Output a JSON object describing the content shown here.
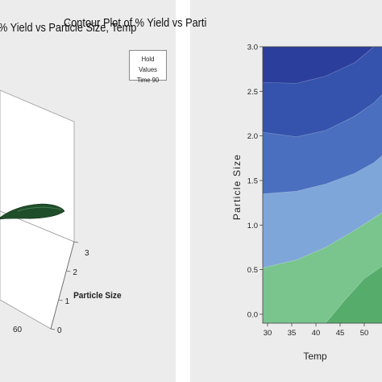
{
  "chart_data": [
    {
      "type": "surface",
      "title": "% Yield vs Particle Size, Temp",
      "hold_values": {
        "header": "Hold Values",
        "line": "Time  90"
      },
      "axes": {
        "particle_size": {
          "label": "Particle Size",
          "ticks": [
            "0",
            "1",
            "2",
            "3"
          ]
        },
        "temp": {
          "label": "",
          "ticks": [
            "60"
          ]
        }
      },
      "surface_color": "#1f4f2a"
    },
    {
      "type": "contour",
      "title": "Contour Plot of % Yield vs Parti",
      "xlabel": "Temp",
      "ylabel": "Particle Size",
      "xlim": [
        29,
        58
      ],
      "ylim": [
        -0.1,
        3.0
      ],
      "x_ticks": [
        "30",
        "35",
        "40",
        "45",
        "50"
      ],
      "y_ticks": [
        "0.0",
        "0.5",
        "1.0",
        "1.5",
        "2.0",
        "2.5",
        "3.0"
      ],
      "levels": [
        {
          "color": "#2c3e9c",
          "boundary": [
            [
              29,
              2.6
            ],
            [
              36,
              2.59
            ],
            [
              42,
              2.67
            ],
            [
              48,
              2.82
            ],
            [
              52,
              3.0
            ]
          ]
        },
        {
          "color": "#3553ac",
          "boundary": [
            [
              29,
              2.04
            ],
            [
              36,
              1.99
            ],
            [
              42,
              2.06
            ],
            [
              48,
              2.22
            ],
            [
              52,
              2.37
            ],
            [
              58,
              2.7
            ]
          ]
        },
        {
          "color": "#4a6fbe",
          "boundary": [
            [
              29,
              1.35
            ],
            [
              36,
              1.38
            ],
            [
              42,
              1.46
            ],
            [
              48,
              1.58
            ],
            [
              52,
              1.7
            ],
            [
              58,
              1.98
            ]
          ]
        },
        {
          "color": "#7fa6d8",
          "boundary": [
            [
              29,
              0.52
            ],
            [
              36,
              0.61
            ],
            [
              42,
              0.75
            ],
            [
              48,
              0.94
            ],
            [
              52,
              1.08
            ],
            [
              58,
              1.3
            ]
          ]
        },
        {
          "color": "#79c58d",
          "boundary": [
            [
              42,
              -0.1
            ],
            [
              46,
              0.16
            ],
            [
              50,
              0.4
            ],
            [
              54,
              0.55
            ],
            [
              58,
              0.62
            ]
          ]
        },
        {
          "color": "#56ad6b",
          "boundary": []
        }
      ]
    }
  ]
}
